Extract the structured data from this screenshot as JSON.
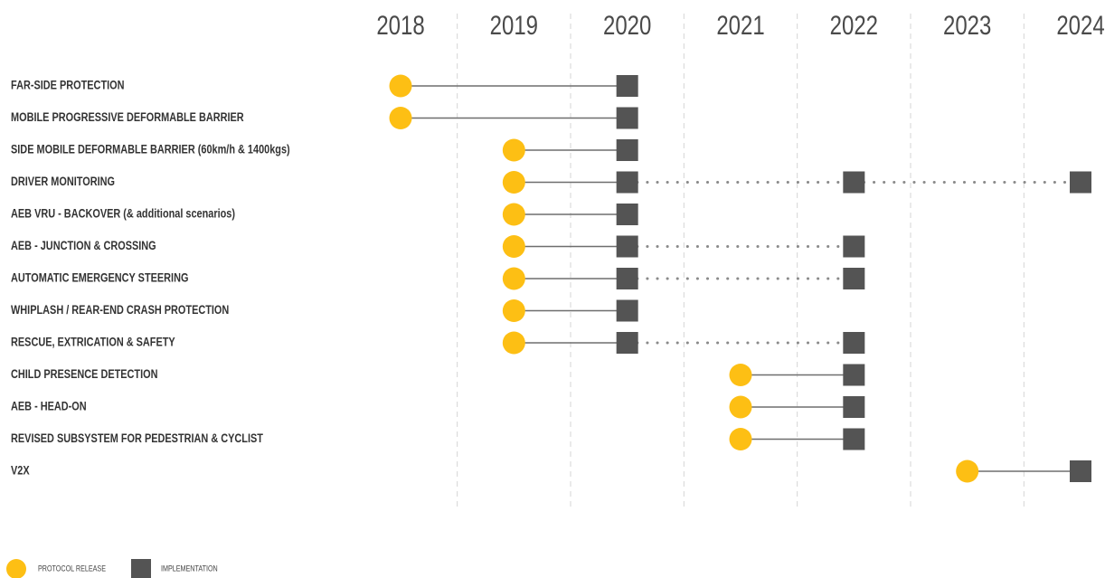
{
  "chart_data": {
    "type": "timeline",
    "xlim": [
      2018,
      2024
    ],
    "xticks": [
      2018,
      2019,
      2020,
      2021,
      2022,
      2023,
      2024
    ],
    "grid": true,
    "legend_position": "bottom-left",
    "legend": {
      "release": "PROTOCOL RELEASE",
      "implementation": "IMPLEMENTATION"
    },
    "release_color": "#fdbf14",
    "implementation_color": "#545454",
    "rows": [
      {
        "label": "FAR-SIDE PROTECTION",
        "release": 2018,
        "implementation": [
          2020
        ]
      },
      {
        "label": "MOBILE PROGRESSIVE DEFORMABLE BARRIER",
        "release": 2018,
        "implementation": [
          2020
        ]
      },
      {
        "label": "SIDE MOBILE DEFORMABLE BARRIER (60km/h & 1400kgs)",
        "release": 2019,
        "implementation": [
          2020
        ]
      },
      {
        "label": "DRIVER MONITORING",
        "release": 2019,
        "implementation": [
          2020,
          2022,
          2024
        ]
      },
      {
        "label": "AEB VRU - BACKOVER (& additional scenarios)",
        "release": 2019,
        "implementation": [
          2020
        ]
      },
      {
        "label": "AEB - JUNCTION & CROSSING",
        "release": 2019,
        "implementation": [
          2020,
          2022
        ]
      },
      {
        "label": "AUTOMATIC EMERGENCY STEERING",
        "release": 2019,
        "implementation": [
          2020,
          2022
        ]
      },
      {
        "label": "WHIPLASH / REAR-END CRASH PROTECTION",
        "release": 2019,
        "implementation": [
          2020
        ]
      },
      {
        "label": "RESCUE, EXTRICATION & SAFETY",
        "release": 2019,
        "implementation": [
          2020,
          2022
        ]
      },
      {
        "label": "CHILD PRESENCE DETECTION",
        "release": 2021,
        "implementation": [
          2022
        ]
      },
      {
        "label": "AEB - HEAD-ON",
        "release": 2021,
        "implementation": [
          2022
        ]
      },
      {
        "label": "REVISED SUBSYSTEM FOR PEDESTRIAN & CYCLIST",
        "release": 2021,
        "implementation": [
          2022
        ]
      },
      {
        "label": "V2X",
        "release": 2023,
        "implementation": [
          2024
        ]
      }
    ]
  }
}
